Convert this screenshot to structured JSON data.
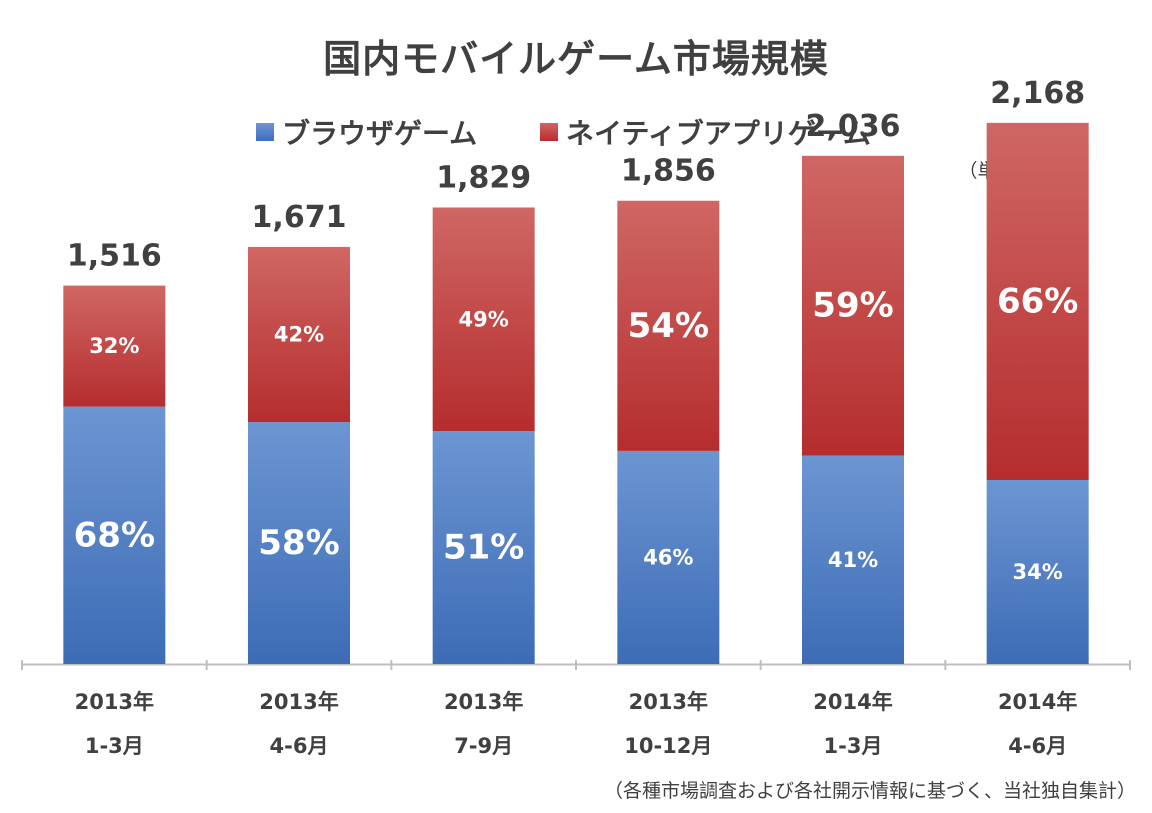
{
  "chart_data": {
    "type": "bar",
    "stacked": true,
    "title": "国内モバイルゲーム市場規模",
    "unit_label": "（単位：億円）",
    "source_note": "（各種市場調査および各社開示情報に基づく、当社独自集計）",
    "categories": [
      [
        "2013年",
        "1-3月"
      ],
      [
        "2013年",
        "4-6月"
      ],
      [
        "2013年",
        "7-9月"
      ],
      [
        "2013年",
        "10-12月"
      ],
      [
        "2014年",
        "1-3月"
      ],
      [
        "2014年",
        "4-6月"
      ]
    ],
    "totals": [
      1516,
      1671,
      1829,
      1856,
      2036,
      2168
    ],
    "total_labels": [
      "1,516",
      "1,671",
      "1,829",
      "1,856",
      "2,036",
      "2,168"
    ],
    "series": [
      {
        "name": "ブラウザゲーム",
        "color": "#4F7FC6",
        "percent": [
          68,
          58,
          51,
          46,
          41,
          34
        ],
        "labels": [
          "68%",
          "58%",
          "51%",
          "46%",
          "41%",
          "34%"
        ]
      },
      {
        "name": "ネイティブアプリゲーム",
        "color": "#C0393A",
        "percent": [
          32,
          42,
          49,
          54,
          59,
          66
        ],
        "labels": [
          "32%",
          "42%",
          "49%",
          "54%",
          "59%",
          "66%"
        ]
      }
    ],
    "ylim": [
      0,
      2500
    ],
    "xlabel": "",
    "ylabel": "",
    "grid": false,
    "legend": "top"
  }
}
